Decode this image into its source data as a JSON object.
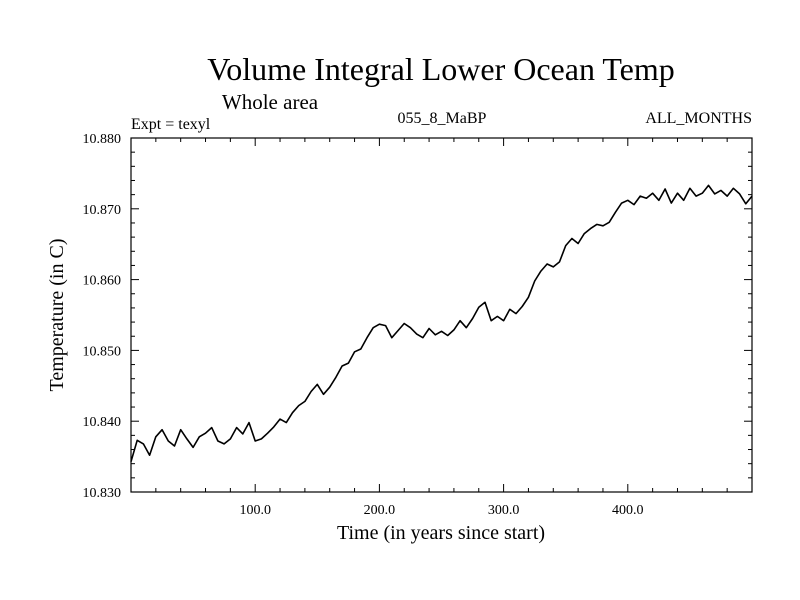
{
  "chart_data": {
    "type": "line",
    "title": "Volume Integral Lower Ocean Temp",
    "subtitle": "Whole area",
    "left_label": "Expt = texyl",
    "center_label": "055_8_MaBP",
    "right_label": "ALL_MONTHS",
    "xlabel": "Time (in years since start)",
    "ylabel": "Temperature (in C)",
    "xlim": [
      0,
      500
    ],
    "ylim": [
      10.83,
      10.88
    ],
    "xticks": [
      100,
      200,
      300,
      400
    ],
    "xtick_labels": [
      "100.0",
      "200.0",
      "300.0",
      "400.0"
    ],
    "yticks": [
      10.83,
      10.84,
      10.85,
      10.86,
      10.87,
      10.88
    ],
    "ytick_labels": [
      "10.830",
      "10.840",
      "10.850",
      "10.860",
      "10.870",
      "10.880"
    ],
    "grid": false,
    "series": [
      {
        "color": "#000000",
        "x": [
          0,
          5,
          10,
          15,
          20,
          25,
          30,
          35,
          40,
          45,
          50,
          55,
          60,
          65,
          70,
          75,
          80,
          85,
          90,
          95,
          100,
          105,
          110,
          115,
          120,
          125,
          130,
          135,
          140,
          145,
          150,
          155,
          160,
          165,
          170,
          175,
          180,
          185,
          190,
          195,
          200,
          205,
          210,
          215,
          220,
          225,
          230,
          235,
          240,
          245,
          250,
          255,
          260,
          265,
          270,
          275,
          280,
          285,
          290,
          295,
          300,
          305,
          310,
          315,
          320,
          325,
          330,
          335,
          340,
          345,
          350,
          355,
          360,
          365,
          370,
          375,
          380,
          385,
          390,
          395,
          400,
          405,
          410,
          415,
          420,
          425,
          430,
          435,
          440,
          445,
          450,
          455,
          460,
          465,
          470,
          475,
          480,
          485,
          490,
          495,
          500
        ],
        "values": [
          10.8343,
          10.8373,
          10.8368,
          10.8352,
          10.8378,
          10.8388,
          10.8372,
          10.8365,
          10.8388,
          10.8375,
          10.8363,
          10.8378,
          10.8383,
          10.8391,
          10.8372,
          10.8368,
          10.8375,
          10.8391,
          10.8382,
          10.8398,
          10.8372,
          10.8375,
          10.8383,
          10.8392,
          10.8403,
          10.8398,
          10.8412,
          10.8422,
          10.8428,
          10.8442,
          10.8452,
          10.8438,
          10.8448,
          10.8462,
          10.8478,
          10.8482,
          10.8498,
          10.8502,
          10.8518,
          10.8532,
          10.8537,
          10.8535,
          10.8518,
          10.8528,
          10.8538,
          10.8532,
          10.8523,
          10.8518,
          10.8531,
          10.8522,
          10.8527,
          10.8521,
          10.8529,
          10.8542,
          10.8532,
          10.8545,
          10.8561,
          10.8568,
          10.8542,
          10.8548,
          10.8542,
          10.8558,
          10.8552,
          10.8562,
          10.8575,
          10.8598,
          10.8612,
          10.8622,
          10.8618,
          10.8625,
          10.8648,
          10.8658,
          10.8651,
          10.8665,
          10.8672,
          10.8678,
          10.8676,
          10.8681,
          10.8695,
          10.8708,
          10.8712,
          10.8706,
          10.8718,
          10.8715,
          10.8722,
          10.8712,
          10.8728,
          10.8708,
          10.8722,
          10.8712,
          10.8729,
          10.8718,
          10.8722,
          10.8733,
          10.8721,
          10.8726,
          10.8718,
          10.8729,
          10.8721,
          10.8707,
          10.8718
        ]
      }
    ]
  }
}
